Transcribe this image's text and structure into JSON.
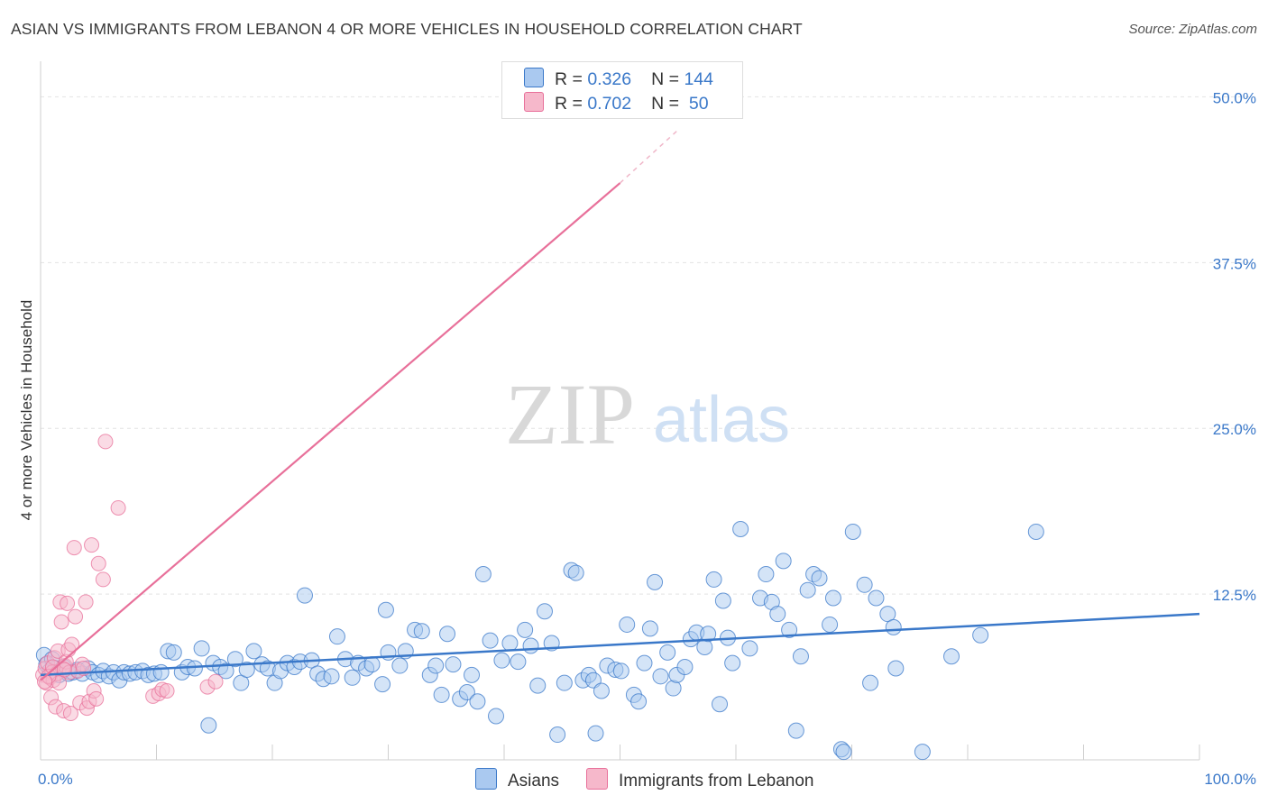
{
  "title": "ASIAN VS IMMIGRANTS FROM LEBANON 4 OR MORE VEHICLES IN HOUSEHOLD CORRELATION CHART",
  "source": "Source: ZipAtlas.com",
  "watermark": {
    "zip": "ZIP",
    "atlas": "atlas"
  },
  "legend": {
    "rows": [
      {
        "r_label": "R = ",
        "r_value": "0.326",
        "n_label": "N = ",
        "n_value": "144",
        "color": "#aac9f0"
      },
      {
        "r_label": "R = ",
        "r_value": "0.702",
        "n_label": "N = ",
        "n_value": " 50",
        "color": "#f6b8cb"
      }
    ]
  },
  "bottom_legend": [
    {
      "label": "Asians",
      "color": "#aac9f0"
    },
    {
      "label": "Immigrants from Lebanon",
      "color": "#f6b8cb"
    }
  ],
  "colors": {
    "blue": "#3a78c9",
    "pink": "#e8709a",
    "blue_fill": "#aac9f0",
    "pink_fill": "#f6b8cb",
    "grid": "#e3e3e3"
  },
  "chart_data": {
    "type": "scatter",
    "title": "ASIAN VS IMMIGRANTS FROM LEBANON 4 OR MORE VEHICLES IN HOUSEHOLD CORRELATION CHART",
    "xlabel": "",
    "ylabel": "4 or more Vehicles in Household",
    "xlim": [
      0,
      100
    ],
    "ylim": [
      0,
      52
    ],
    "x_tick_labels": [
      "0.0%",
      "100.0%"
    ],
    "y_ticks": [
      12.5,
      25.0,
      37.5,
      50.0
    ],
    "y_tick_labels": [
      "12.5%",
      "25.0%",
      "37.5%",
      "50.0%"
    ],
    "grid": true,
    "legend_position": "top-center",
    "series": [
      {
        "name": "Asians",
        "color": "#3a78c9",
        "trend": {
          "x0": 0,
          "y0": 6.4,
          "x1": 100,
          "y1": 11.0
        },
        "points": [
          [
            0.3,
            7.9
          ],
          [
            0.5,
            7.2
          ],
          [
            0.8,
            6.7
          ],
          [
            1,
            7.6
          ],
          [
            1.3,
            6.9
          ],
          [
            1.6,
            6.4
          ],
          [
            2,
            7.0
          ],
          [
            2.4,
            6.5
          ],
          [
            2.8,
            6.6
          ],
          [
            3.2,
            6.8
          ],
          [
            3.6,
            6.5
          ],
          [
            4.1,
            6.9
          ],
          [
            4.5,
            6.6
          ],
          [
            5,
            6.4
          ],
          [
            5.4,
            6.7
          ],
          [
            5.9,
            6.3
          ],
          [
            6.3,
            6.6
          ],
          [
            6.8,
            6.0
          ],
          [
            7.2,
            6.6
          ],
          [
            7.7,
            6.5
          ],
          [
            8.2,
            6.6
          ],
          [
            8.8,
            6.7
          ],
          [
            9.3,
            6.4
          ],
          [
            9.8,
            6.5
          ],
          [
            10.4,
            6.6
          ],
          [
            11,
            8.2
          ],
          [
            11.5,
            8.1
          ],
          [
            12.2,
            6.6
          ],
          [
            12.7,
            7.0
          ],
          [
            13.3,
            6.9
          ],
          [
            13.9,
            8.4
          ],
          [
            14.5,
            2.6
          ],
          [
            14.9,
            7.3
          ],
          [
            15.5,
            7.0
          ],
          [
            16,
            6.7
          ],
          [
            16.8,
            7.6
          ],
          [
            17.3,
            5.8
          ],
          [
            17.8,
            6.8
          ],
          [
            18.4,
            8.2
          ],
          [
            19.1,
            7.2
          ],
          [
            19.6,
            6.9
          ],
          [
            20.2,
            5.8
          ],
          [
            20.7,
            6.7
          ],
          [
            21.3,
            7.3
          ],
          [
            21.9,
            7.0
          ],
          [
            22.4,
            7.4
          ],
          [
            22.8,
            12.4
          ],
          [
            23.4,
            7.5
          ],
          [
            23.9,
            6.5
          ],
          [
            24.4,
            6.1
          ],
          [
            25.1,
            6.3
          ],
          [
            25.6,
            9.3
          ],
          [
            26.3,
            7.6
          ],
          [
            26.9,
            6.2
          ],
          [
            27.4,
            7.3
          ],
          [
            28.1,
            6.9
          ],
          [
            28.6,
            7.2
          ],
          [
            29.5,
            5.7
          ],
          [
            29.8,
            11.3
          ],
          [
            30,
            8.1
          ],
          [
            31,
            7.1
          ],
          [
            31.5,
            8.2
          ],
          [
            32.3,
            9.8
          ],
          [
            32.9,
            9.7
          ],
          [
            33.6,
            6.4
          ],
          [
            34.1,
            7.1
          ],
          [
            34.6,
            4.9
          ],
          [
            35.1,
            9.5
          ],
          [
            35.6,
            7.2
          ],
          [
            36.2,
            4.6
          ],
          [
            36.8,
            5.1
          ],
          [
            37.2,
            6.4
          ],
          [
            37.7,
            4.4
          ],
          [
            38.2,
            14.0
          ],
          [
            38.8,
            9.0
          ],
          [
            39.3,
            3.3
          ],
          [
            39.8,
            7.5
          ],
          [
            40.5,
            8.8
          ],
          [
            41.2,
            7.4
          ],
          [
            41.8,
            9.8
          ],
          [
            42.3,
            8.6
          ],
          [
            42.9,
            5.6
          ],
          [
            43.5,
            11.2
          ],
          [
            44.1,
            8.8
          ],
          [
            44.6,
            1.9
          ],
          [
            45.2,
            5.8
          ],
          [
            45.8,
            14.3
          ],
          [
            46.2,
            14.1
          ],
          [
            46.8,
            6.0
          ],
          [
            47.3,
            6.4
          ],
          [
            47.9,
            2.0
          ],
          [
            47.7,
            6.0
          ],
          [
            48.4,
            5.2
          ],
          [
            48.9,
            7.1
          ],
          [
            49.6,
            6.8
          ],
          [
            50.1,
            6.7
          ],
          [
            50.6,
            10.2
          ],
          [
            51.2,
            4.9
          ],
          [
            51.6,
            4.4
          ],
          [
            52.1,
            7.3
          ],
          [
            52.6,
            9.9
          ],
          [
            53,
            13.4
          ],
          [
            53.5,
            6.3
          ],
          [
            54.1,
            8.1
          ],
          [
            54.6,
            5.4
          ],
          [
            54.9,
            6.4
          ],
          [
            55.6,
            7.0
          ],
          [
            56.1,
            9.1
          ],
          [
            56.6,
            9.6
          ],
          [
            57.3,
            8.5
          ],
          [
            57.6,
            9.5
          ],
          [
            58.1,
            13.6
          ],
          [
            58.6,
            4.2
          ],
          [
            58.9,
            12.0
          ],
          [
            59.3,
            9.2
          ],
          [
            59.7,
            7.3
          ],
          [
            60.4,
            17.4
          ],
          [
            61.2,
            8.4
          ],
          [
            62.1,
            12.2
          ],
          [
            62.6,
            14.0
          ],
          [
            63.1,
            11.9
          ],
          [
            63.6,
            11.0
          ],
          [
            64.1,
            15.0
          ],
          [
            64.6,
            9.8
          ],
          [
            65.2,
            2.2
          ],
          [
            65.6,
            7.8
          ],
          [
            66.2,
            12.8
          ],
          [
            66.7,
            14.0
          ],
          [
            67.2,
            13.7
          ],
          [
            68.1,
            10.2
          ],
          [
            68.4,
            12.2
          ],
          [
            69.1,
            0.8
          ],
          [
            69.3,
            0.6
          ],
          [
            70.1,
            17.2
          ],
          [
            71.1,
            13.2
          ],
          [
            71.6,
            5.8
          ],
          [
            72.1,
            12.2
          ],
          [
            73.1,
            11.0
          ],
          [
            73.6,
            10.0
          ],
          [
            73.8,
            6.9
          ],
          [
            76.1,
            0.6
          ],
          [
            78.6,
            7.8
          ],
          [
            81.1,
            9.4
          ],
          [
            85.9,
            17.2
          ]
        ]
      },
      {
        "name": "Immigrants from Lebanon",
        "color": "#e8709a",
        "trend": {
          "x0": 0,
          "y0": 6.0,
          "x1": 50,
          "y1": 43.5,
          "dashed_x1": 55,
          "dashed_y1": 47.5
        },
        "points": [
          [
            0.2,
            6.4
          ],
          [
            0.4,
            6.9
          ],
          [
            0.5,
            5.8
          ],
          [
            0.6,
            7.3
          ],
          [
            0.8,
            6.2
          ],
          [
            0.9,
            4.7
          ],
          [
            1,
            6.6
          ],
          [
            1.1,
            6.0
          ],
          [
            1.2,
            7.7
          ],
          [
            1.3,
            4.0
          ],
          [
            1.4,
            6.5
          ],
          [
            1.5,
            8.2
          ],
          [
            1.6,
            5.8
          ],
          [
            1.7,
            11.9
          ],
          [
            1.8,
            10.4
          ],
          [
            1.9,
            6.9
          ],
          [
            2,
            3.7
          ],
          [
            2.1,
            7.1
          ],
          [
            2.2,
            7.4
          ],
          [
            2.3,
            11.8
          ],
          [
            2.4,
            8.3
          ],
          [
            2.5,
            6.6
          ],
          [
            2.6,
            3.5
          ],
          [
            2.7,
            8.7
          ],
          [
            2.9,
            16.0
          ],
          [
            3,
            10.8
          ],
          [
            3.2,
            6.7
          ],
          [
            3.4,
            4.3
          ],
          [
            3.6,
            7.2
          ],
          [
            3.7,
            6.9
          ],
          [
            3.9,
            11.9
          ],
          [
            4,
            3.9
          ],
          [
            4.2,
            4.4
          ],
          [
            4.4,
            16.2
          ],
          [
            4.6,
            5.2
          ],
          [
            4.8,
            4.6
          ],
          [
            5,
            14.8
          ],
          [
            5.4,
            13.6
          ],
          [
            5.6,
            24.0
          ],
          [
            6.7,
            19.0
          ],
          [
            9.7,
            4.8
          ],
          [
            10.2,
            5.0
          ],
          [
            10.5,
            5.3
          ],
          [
            10.9,
            5.2
          ],
          [
            14.4,
            5.5
          ],
          [
            15.1,
            5.9
          ],
          [
            0.7,
            6.3
          ],
          [
            1.05,
            7.0
          ],
          [
            0.35,
            5.9
          ],
          [
            2.05,
            6.8
          ]
        ]
      }
    ]
  }
}
